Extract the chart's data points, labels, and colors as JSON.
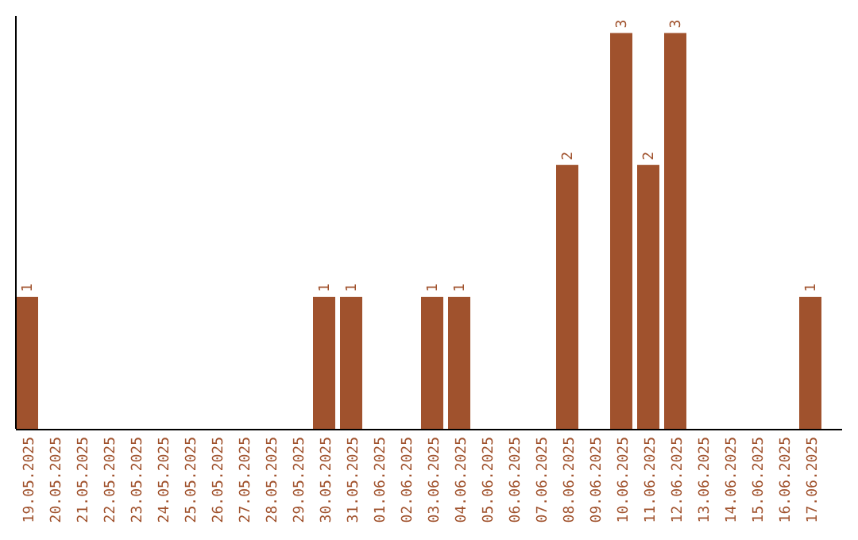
{
  "chart_data": {
    "type": "bar",
    "categories": [
      "19.05.2025",
      "20.05.2025",
      "21.05.2025",
      "22.05.2025",
      "23.05.2025",
      "24.05.2025",
      "25.05.2025",
      "26.05.2025",
      "27.05.2025",
      "28.05.2025",
      "29.05.2025",
      "30.05.2025",
      "31.05.2025",
      "01.06.2025",
      "02.06.2025",
      "03.06.2025",
      "04.06.2025",
      "05.06.2025",
      "06.06.2025",
      "07.06.2025",
      "08.06.2025",
      "09.06.2025",
      "10.06.2025",
      "11.06.2025",
      "12.06.2025",
      "13.06.2025",
      "14.06.2025",
      "15.06.2025",
      "16.06.2025",
      "17.06.2025"
    ],
    "values": [
      1,
      0,
      0,
      0,
      0,
      0,
      0,
      0,
      0,
      0,
      0,
      1,
      1,
      0,
      0,
      1,
      1,
      0,
      0,
      0,
      2,
      0,
      3,
      2,
      3,
      0,
      0,
      0,
      0,
      1
    ],
    "value_labels": [
      "1",
      null,
      null,
      null,
      null,
      null,
      null,
      null,
      null,
      null,
      null,
      "1",
      "1",
      null,
      null,
      "1",
      "1",
      null,
      null,
      null,
      "2",
      null,
      "3",
      "2",
      "3",
      null,
      null,
      null,
      null,
      "1"
    ],
    "color": "#a0522d",
    "ylim": [
      0,
      3.13
    ],
    "tick_labels": "x"
  }
}
